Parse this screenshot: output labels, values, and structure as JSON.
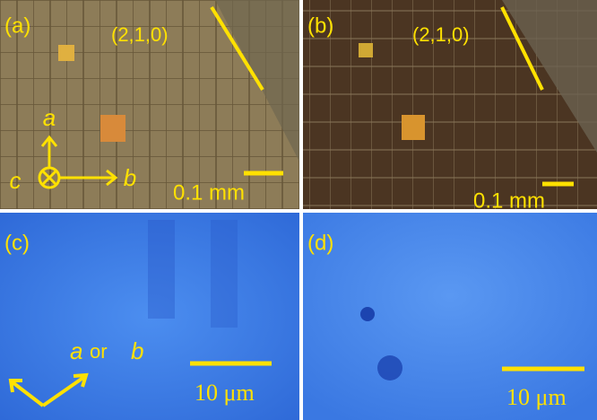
{
  "panels": [
    {
      "label": "(a)",
      "plane": "(2,1,0)",
      "axes": {
        "a": "a",
        "b": "b",
        "c": "c"
      },
      "scale_bar": "0.1 mm"
    },
    {
      "label": "(b)",
      "plane": "(2,1,0)",
      "scale_bar": "0.1 mm"
    },
    {
      "label": "(c)",
      "direction": [
        "a",
        "or",
        "b"
      ],
      "scale_bar": "10 μm"
    },
    {
      "label": "(d)",
      "scale_bar": "10 μm"
    }
  ]
}
